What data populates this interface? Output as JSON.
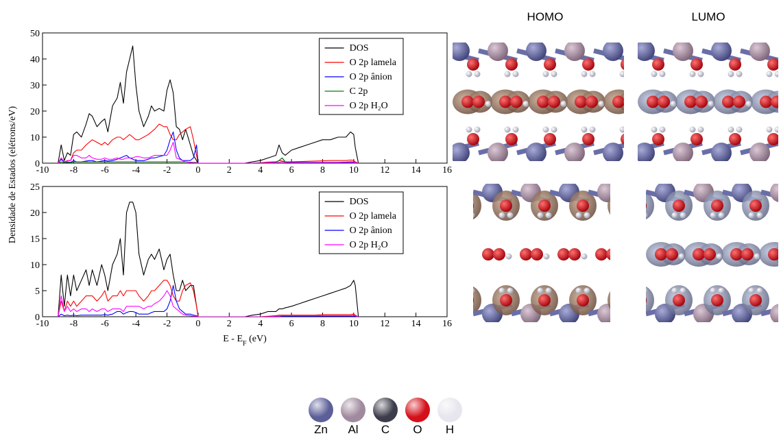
{
  "chart_data": [
    {
      "type": "line",
      "ylabel": "Densidade de Estados (elétrons/eV)",
      "x": [
        -9,
        -8.8,
        -8.6,
        -8.4,
        -8.2,
        -8,
        -7.8,
        -7.5,
        -7.2,
        -7,
        -6.8,
        -6.5,
        -6.2,
        -6,
        -5.8,
        -5.5,
        -5.2,
        -5,
        -4.8,
        -4.6,
        -4.4,
        -4.2,
        -4,
        -3.8,
        -3.5,
        -3.2,
        -3,
        -2.8,
        -2.5,
        -2.2,
        -2,
        -1.8,
        -1.6,
        -1.4,
        -1.2,
        -1,
        -0.8,
        -0.5,
        -0.3,
        -0.1,
        0,
        1,
        2,
        3,
        3.5,
        4,
        4.5,
        5,
        5.2,
        5.4,
        5.6,
        6,
        6.5,
        7,
        7.5,
        8,
        8.5,
        9,
        9.5,
        9.8,
        10,
        10.1,
        10.3
      ],
      "series": [
        {
          "name": "DOS",
          "color": "#000000",
          "values": [
            0,
            7,
            1,
            4,
            3,
            11,
            12,
            10,
            15,
            19,
            18,
            14,
            16,
            17,
            12,
            22,
            25,
            31,
            23,
            35,
            40,
            45,
            30,
            20,
            14,
            18,
            22,
            20,
            21,
            20,
            28,
            32,
            27,
            14,
            13,
            9,
            13,
            7,
            3,
            1,
            0,
            0,
            0,
            0,
            0.5,
            1,
            2,
            3,
            7,
            4,
            3,
            5,
            6,
            7,
            8,
            9,
            9,
            10,
            10,
            12,
            11,
            6,
            0
          ]
        },
        {
          "name": "O 2p lamela",
          "color": "#ff0000",
          "values": [
            0,
            2,
            0.5,
            1,
            1,
            4,
            5,
            5,
            7,
            8,
            9,
            8,
            7,
            8,
            7,
            9,
            10,
            10,
            9,
            10,
            11,
            10,
            9,
            9,
            10,
            11,
            12,
            13,
            15,
            14,
            14,
            11,
            9,
            9,
            11,
            12,
            13,
            14,
            9,
            3,
            0,
            0,
            0,
            0,
            0,
            0.2,
            0.4,
            0.5,
            1,
            0.8,
            0.5,
            0.5,
            0.6,
            0.7,
            0.8,
            0.9,
            1,
            1,
            1,
            1.2,
            1,
            0.5,
            0
          ]
        },
        {
          "name": "O 2p ânion",
          "color": "#0000ff",
          "values": [
            0,
            1.5,
            0.3,
            0.5,
            0.3,
            1,
            0.5,
            0.5,
            0.8,
            1,
            1,
            0.5,
            0.8,
            1,
            0.8,
            1,
            1.5,
            2,
            2.5,
            3,
            2,
            1.5,
            1,
            1,
            1,
            1.5,
            2,
            2,
            2.5,
            3,
            5,
            9,
            12,
            5,
            2,
            1,
            1,
            1,
            2,
            7,
            0,
            0,
            0,
            0,
            0,
            0.1,
            0.2,
            0.3,
            1,
            2,
            0.5,
            0.3,
            0.3,
            0.3,
            0.3,
            0.3,
            0.3,
            0.3,
            0.4,
            0.5,
            0.4,
            0.2,
            0
          ]
        },
        {
          "name": "C 2p",
          "color": "#008000",
          "values": [
            0,
            0.5,
            0.2,
            0.3,
            0.2,
            0.5,
            0.5,
            0.5,
            0.5,
            0.5,
            0.5,
            0.5,
            0.5,
            0.5,
            0.5,
            0.5,
            0.5,
            0.5,
            0.5,
            0.5,
            0.5,
            0.5,
            0.5,
            0.5,
            0.5,
            0.5,
            0.5,
            0.5,
            0.5,
            0.5,
            0.5,
            0.5,
            0.5,
            0.5,
            0.5,
            0.5,
            0.5,
            0.3,
            0.3,
            0.3,
            0,
            0,
            0,
            0,
            0,
            0.1,
            0.1,
            0.2,
            1,
            2,
            0.5,
            0.2,
            0.2,
            0.2,
            0.2,
            0.2,
            0.2,
            0.2,
            0.2,
            0.2,
            0.2,
            0.1,
            0
          ]
        },
        {
          "name": "O 2p H₂O",
          "color": "#ff00ff",
          "values": [
            0,
            2,
            0.5,
            1,
            1,
            3,
            3,
            2,
            2,
            3,
            2,
            1.5,
            1.5,
            2,
            1.5,
            1.5,
            2,
            1.5,
            1.5,
            2,
            2,
            2,
            2.5,
            2.5,
            2,
            2,
            2.5,
            3,
            3,
            3,
            3,
            5,
            8,
            2,
            1.5,
            1,
            0.5,
            0.3,
            0.2,
            0.1,
            0,
            0,
            0,
            0,
            0,
            0,
            0.1,
            0.1,
            0.3,
            0.5,
            0.3,
            0.2,
            0.2,
            0.2,
            0.2,
            0.2,
            0.2,
            0.2,
            0.2,
            0.2,
            0.2,
            0.1,
            0
          ]
        }
      ],
      "xlim": [
        -10,
        16
      ],
      "xticks": [
        -10,
        -8,
        -6,
        -4,
        -2,
        0,
        2,
        4,
        6,
        8,
        10,
        12,
        14,
        16
      ],
      "ylim": [
        0,
        50
      ],
      "yticks": [
        0,
        10,
        20,
        30,
        40,
        50
      ],
      "legend": "top right"
    },
    {
      "type": "line",
      "xlabel": [
        "E - E",
        "F",
        " (eV)"
      ],
      "x": [
        -9,
        -8.8,
        -8.6,
        -8.4,
        -8.2,
        -8,
        -7.8,
        -7.5,
        -7.2,
        -7,
        -6.8,
        -6.5,
        -6.2,
        -6,
        -5.8,
        -5.5,
        -5.2,
        -5,
        -4.8,
        -4.6,
        -4.4,
        -4.2,
        -4,
        -3.8,
        -3.5,
        -3.2,
        -3,
        -2.8,
        -2.5,
        -2.2,
        -2,
        -1.8,
        -1.6,
        -1.4,
        -1.2,
        -1,
        -0.8,
        -0.5,
        -0.3,
        -0.1,
        0,
        1,
        2,
        3,
        3.5,
        4,
        4.5,
        5,
        5.2,
        5.4,
        5.6,
        6,
        6.5,
        7,
        7.5,
        8,
        8.5,
        9,
        9.5,
        9.8,
        10,
        10.1,
        10.3
      ],
      "series": [
        {
          "name": "DOS",
          "color": "#000000",
          "values": [
            0,
            8,
            2,
            8,
            4,
            8,
            5,
            7,
            9,
            6,
            9,
            6,
            10,
            8,
            5,
            10,
            12,
            15,
            8,
            20,
            22,
            22,
            20,
            12,
            8,
            11,
            12,
            11,
            13,
            9,
            11,
            12,
            8,
            5,
            5,
            7,
            5,
            6,
            6,
            2,
            0,
            0,
            0,
            0,
            0.3,
            0.5,
            1,
            1,
            1.5,
            1.5,
            1.7,
            2,
            2.5,
            3,
            3.5,
            4,
            4.5,
            5,
            5.5,
            6,
            7,
            6,
            0
          ]
        },
        {
          "name": "O 2p lamela",
          "color": "#ff0000",
          "values": [
            0,
            3,
            1,
            3,
            2,
            3,
            2,
            3,
            4,
            4,
            4,
            3,
            4,
            5,
            3,
            4,
            4,
            5,
            4,
            5,
            5,
            5,
            5,
            4,
            3,
            4,
            5,
            5,
            6,
            7,
            7,
            6,
            4,
            3,
            3,
            5,
            6,
            6.5,
            5,
            2,
            0,
            0,
            0,
            0,
            0,
            0,
            0.1,
            0.2,
            0.3,
            0.3,
            0.3,
            0.3,
            0.3,
            0.3,
            0.3,
            0.4,
            0.4,
            0.4,
            0.4,
            0.4,
            0.5,
            0.3,
            0
          ]
        },
        {
          "name": "O 2p ânion",
          "color": "#0000ff",
          "values": [
            0,
            0.5,
            0.2,
            0.3,
            0.2,
            0.3,
            0.2,
            0.3,
            0.3,
            0.3,
            0.3,
            0.3,
            0.3,
            0.4,
            0.3,
            0.5,
            1,
            1,
            0.5,
            0.8,
            1,
            1,
            0.8,
            0.5,
            0.5,
            0.5,
            0.8,
            1,
            1,
            1,
            1.5,
            3,
            6,
            3,
            1.5,
            1,
            0.5,
            0.5,
            0.3,
            0.2,
            0,
            0,
            0,
            0,
            0,
            0,
            0,
            0.1,
            0.1,
            0.1,
            0.1,
            0.1,
            0.1,
            0.1,
            0.1,
            0.1,
            0.1,
            0.1,
            0.1,
            0.1,
            0.1,
            0.1,
            0
          ]
        },
        {
          "name": "O 2p H₂O",
          "color": "#ff00ff",
          "values": [
            0,
            4,
            1,
            2,
            1,
            1.5,
            1,
            1.5,
            1.5,
            1,
            1.5,
            1,
            1.5,
            1.5,
            1,
            1.5,
            1.5,
            1.5,
            1,
            2,
            2,
            2,
            2,
            2,
            1.5,
            2,
            2,
            2.5,
            3,
            4,
            5,
            4,
            2,
            1.5,
            1,
            0.5,
            0.3,
            0.2,
            0.1,
            0.1,
            0,
            0,
            0,
            0,
            0,
            0,
            0,
            0.1,
            0.1,
            0.2,
            0.2,
            0.2,
            0.2,
            0.2,
            0.2,
            0.2,
            0.2,
            0.2,
            0.2,
            0.2,
            0.3,
            0.2,
            0
          ]
        }
      ],
      "xlim": [
        -10,
        16
      ],
      "xticks": [
        -10,
        -8,
        -6,
        -4,
        -2,
        0,
        2,
        4,
        6,
        8,
        10,
        12,
        14,
        16
      ],
      "ylim": [
        0,
        25
      ],
      "yticks": [
        0,
        5,
        10,
        15,
        20,
        25
      ],
      "legend": "top right"
    }
  ],
  "orbitals": {
    "titles": [
      "HOMO",
      "LUMO"
    ]
  },
  "element_key": [
    {
      "label": "Zn",
      "color": "#5c5f98"
    },
    {
      "label": "Al",
      "color": "#a08a9e"
    },
    {
      "label": "C",
      "color": "#3c3d4a"
    },
    {
      "label": "O",
      "color": "#d4101a"
    },
    {
      "label": "H",
      "color": "#e6e6ee"
    }
  ]
}
